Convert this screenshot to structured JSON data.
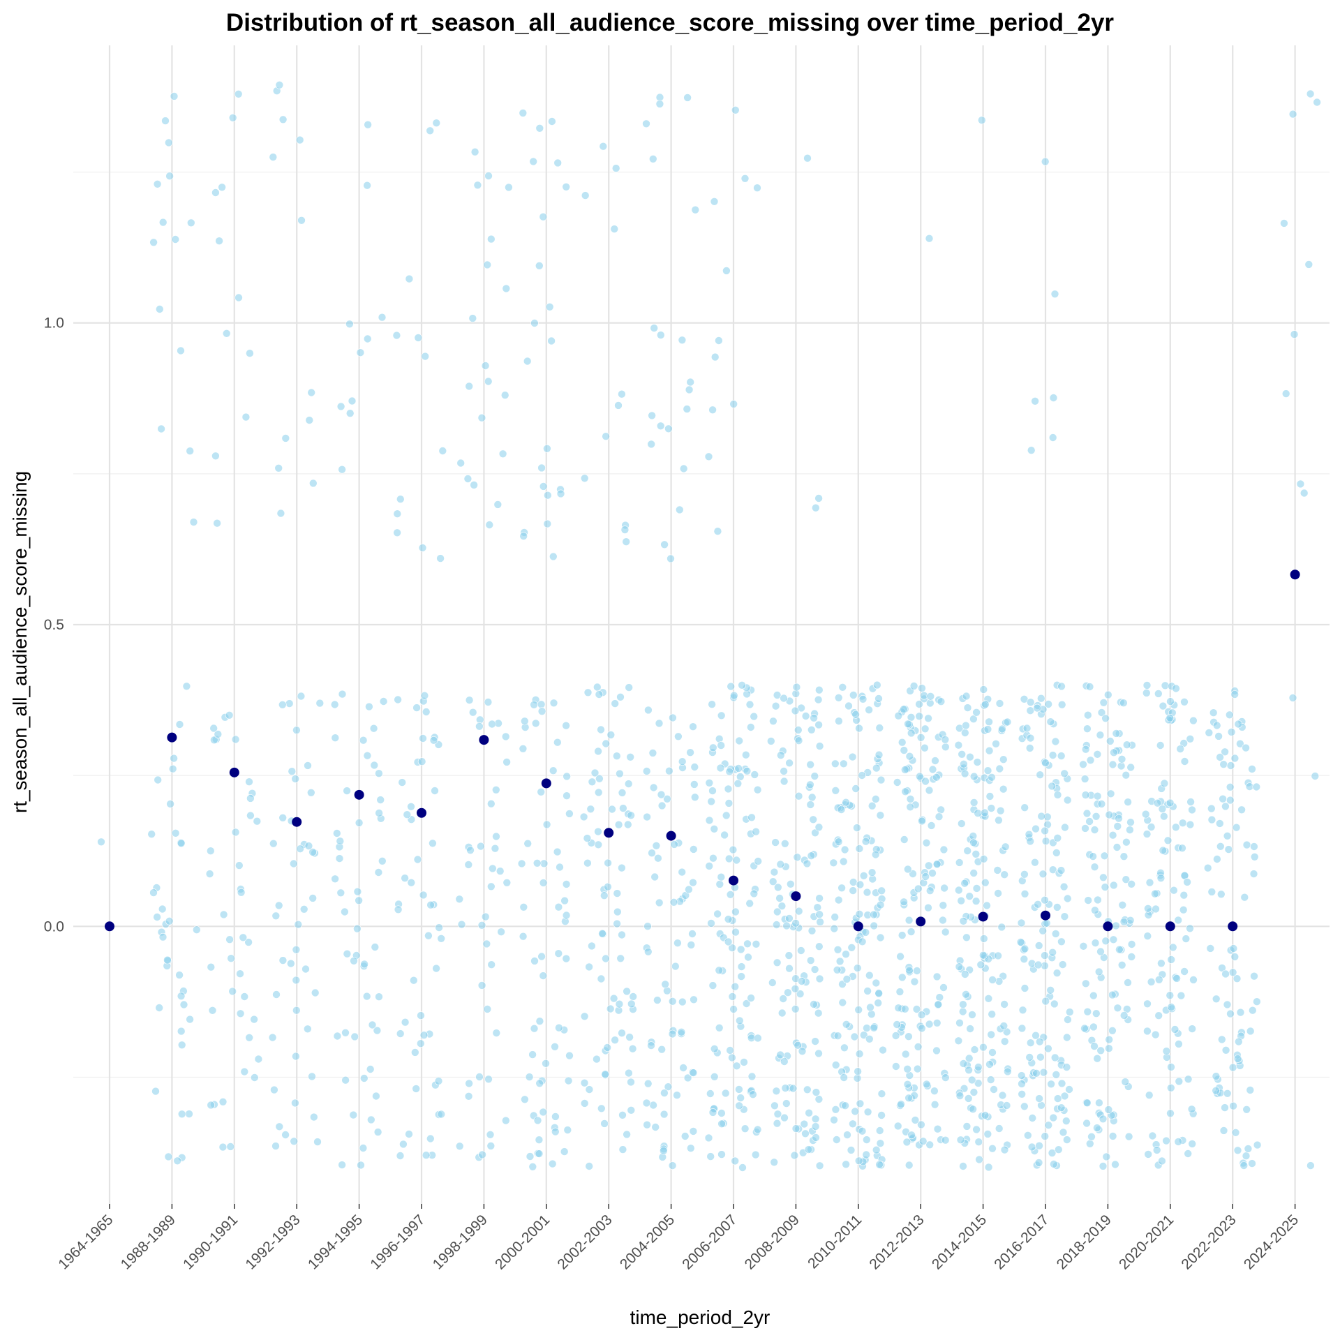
{
  "chart_data": {
    "type": "scatter",
    "title": "Distribution of rt_season_all_audience_score_missing over time_period_2yr",
    "xlabel": "time_period_2yr",
    "ylabel": "rt_season_all_audience_score_missing",
    "categories": [
      "1964-1965",
      "1988-1989",
      "1990-1991",
      "1992-1993",
      "1994-1995",
      "1996-1997",
      "1998-1999",
      "2000-2001",
      "2002-2003",
      "2004-2005",
      "2006-2007",
      "2008-2009",
      "2010-2011",
      "2012-2013",
      "2014-2015",
      "2016-2017",
      "2018-2019",
      "2020-2021",
      "2022-2023",
      "2024-2025"
    ],
    "ylim": [
      -0.46,
      1.46
    ],
    "yticks": [
      0.0,
      0.5,
      1.0
    ],
    "ytick_labels": [
      "0.0",
      "0.5",
      "1.0"
    ],
    "grid": true,
    "series": [
      {
        "role": "jittered-observations",
        "color": "#87ceeb",
        "values": [
          0,
          0.3,
          0.2,
          0.2,
          0.2,
          0.2,
          0.3,
          0.2,
          0.2,
          0.2,
          0.1,
          0.1,
          0.0,
          0.1,
          0.1,
          0.1,
          0.0,
          0.0,
          0.0,
          0.6
        ],
        "approx_counts": [
          1,
          50,
          50,
          55,
          60,
          60,
          60,
          85,
          90,
          95,
          130,
          130,
          150,
          150,
          160,
          150,
          130,
          110,
          90,
          12
        ],
        "note_values": "individual observations are 0 or 1 with horizontal and vertical jitter"
      },
      {
        "role": "means",
        "color": "#00007f",
        "values": [
          0.0,
          0.313,
          0.255,
          0.173,
          0.218,
          0.188,
          0.309,
          0.237,
          0.155,
          0.15,
          0.076,
          0.05,
          0.0,
          0.008,
          0.016,
          0.018,
          0.0,
          0.0,
          0.0,
          0.583
        ]
      }
    ]
  }
}
